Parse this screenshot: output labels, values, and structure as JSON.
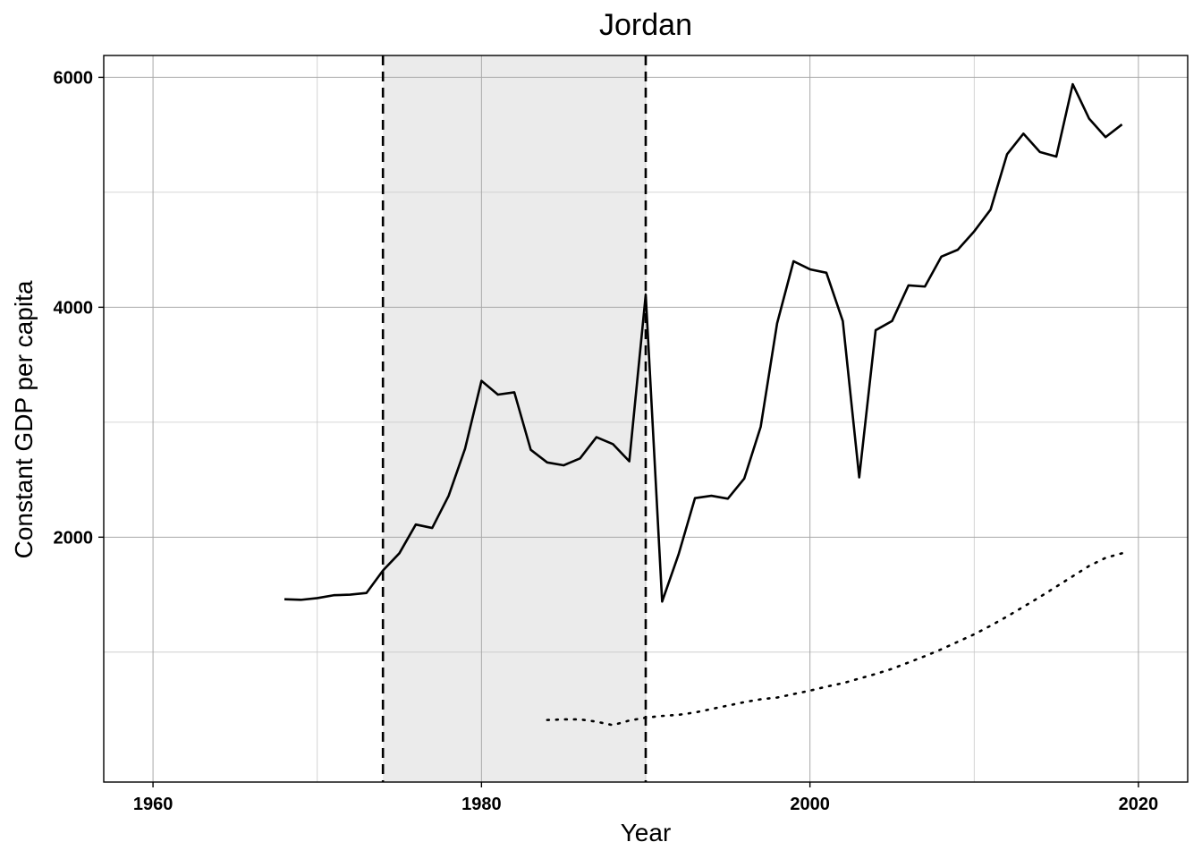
{
  "chart_data": {
    "type": "line",
    "title": "Jordan",
    "xlabel": "Year",
    "ylabel": "Constant GDP per capita",
    "xlim": [
      1957,
      2023
    ],
    "ylim": [
      -130,
      6190
    ],
    "x_ticks": [
      1960,
      1980,
      2000,
      2020
    ],
    "x_tick_labels": [
      "1960",
      "1980",
      "2000",
      "2020"
    ],
    "x_minor_gridlines": [
      1970,
      1990,
      2010
    ],
    "y_ticks": [
      2000,
      4000,
      6000
    ],
    "y_tick_labels": [
      "2000",
      "4000",
      "6000"
    ],
    "y_minor_gridlines": [
      1000,
      3000,
      5000
    ],
    "grid": true,
    "shaded_period": {
      "start": 1974,
      "end": 1990,
      "color": "#ebebeb"
    },
    "vertical_lines": [
      1974,
      1990
    ],
    "series": [
      {
        "style": "solid",
        "color": "#000000",
        "x": [
          1968,
          1969,
          1970,
          1971,
          1972,
          1973,
          1974,
          1975,
          1976,
          1977,
          1978,
          1979,
          1980,
          1981,
          1982,
          1983,
          1984,
          1985,
          1986,
          1987,
          1988,
          1989,
          1990,
          1991,
          1992,
          1993,
          1994,
          1995,
          1996,
          1997,
          1998,
          1999,
          2000,
          2001,
          2002,
          2003,
          2004,
          2005,
          2006,
          2007,
          2008,
          2009,
          2010,
          2011,
          2012,
          2013,
          2014,
          2015,
          2016,
          2017,
          2018,
          2019
        ],
        "y": [
          1460,
          1455,
          1470,
          1495,
          1500,
          1515,
          1710,
          1860,
          2110,
          2080,
          2360,
          2770,
          3360,
          3240,
          3260,
          2760,
          2650,
          2625,
          2685,
          2870,
          2810,
          2660,
          4110,
          1440,
          1850,
          2340,
          2360,
          2335,
          2510,
          2960,
          3860,
          4400,
          4330,
          4300,
          3880,
          2520,
          3800,
          3880,
          4190,
          4180,
          4440,
          4500,
          4660,
          4850,
          5330,
          5510,
          5350,
          5310,
          5940,
          5640,
          5480,
          5590
        ]
      },
      {
        "style": "dotted",
        "color": "#000000",
        "x": [
          1984,
          1985,
          1986,
          1987,
          1988,
          1989,
          1990,
          1991,
          1992,
          1993,
          1994,
          1995,
          1996,
          1997,
          1998,
          1999,
          2000,
          2001,
          2002,
          2003,
          2004,
          2005,
          2006,
          2007,
          2008,
          2009,
          2010,
          2011,
          2012,
          2013,
          2014,
          2015,
          2016,
          2017,
          2018,
          2019
        ],
        "y": [
          410,
          415,
          415,
          395,
          365,
          405,
          430,
          445,
          455,
          475,
          505,
          535,
          565,
          590,
          605,
          635,
          665,
          700,
          730,
          770,
          810,
          855,
          910,
          965,
          1025,
          1090,
          1155,
          1230,
          1310,
          1395,
          1480,
          1570,
          1660,
          1750,
          1820,
          1860
        ]
      }
    ]
  }
}
